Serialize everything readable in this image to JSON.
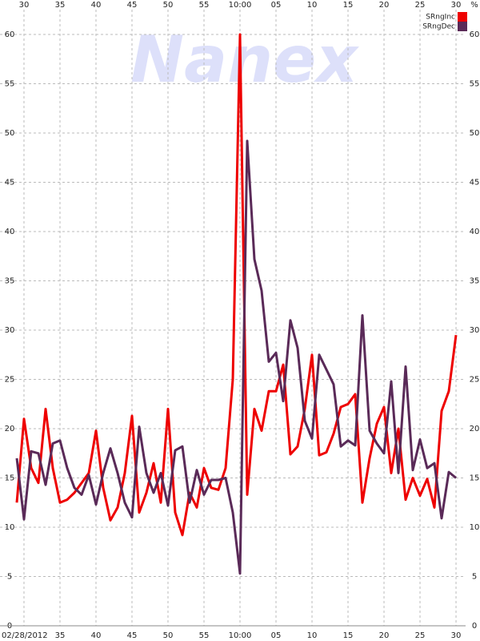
{
  "chart_data": {
    "type": "line",
    "watermark": "Nanex",
    "date": "02/28/2012",
    "y_unit": "%",
    "x": [
      29,
      30,
      31,
      32,
      33,
      34,
      35,
      36,
      37,
      38,
      39,
      40,
      41,
      42,
      43,
      44,
      45,
      46,
      47,
      48,
      49,
      50,
      51,
      52,
      53,
      54,
      55,
      56,
      57,
      58,
      59,
      60,
      61,
      62,
      63,
      64,
      65,
      66,
      67,
      68,
      69,
      70,
      71,
      72,
      73,
      74,
      75,
      76,
      77,
      78,
      79,
      80,
      81,
      82,
      83,
      84,
      85,
      86,
      87,
      88,
      89,
      90
    ],
    "series": [
      {
        "name": "SRngInc",
        "color": "#ee0000",
        "values": [
          12.5,
          21,
          16,
          14.5,
          22,
          16,
          12.5,
          12.8,
          13.5,
          14.5,
          15.5,
          19.8,
          14,
          10.7,
          12,
          15.5,
          21.3,
          11.5,
          13.5,
          16.5,
          12.5,
          22,
          11.5,
          9.2,
          13.5,
          12,
          16,
          14,
          13.8,
          16,
          25,
          60,
          13.3,
          22,
          19.8,
          23.8,
          23.8,
          26.5,
          17.4,
          18.2,
          22,
          27.5,
          17.3,
          17.6,
          19.5,
          22.2,
          22.5,
          23.5,
          12.5,
          17,
          20.5,
          22.2,
          15.5,
          20,
          12.8,
          15,
          13.2,
          14.9,
          12,
          21.8,
          23.8,
          29.5
        ]
      },
      {
        "name": "SRngDec",
        "color": "#5a2a58",
        "values": [
          17,
          10.8,
          17.7,
          17.5,
          14.3,
          18.5,
          18.8,
          16,
          14,
          13.3,
          15.3,
          12.3,
          15.5,
          18,
          15.5,
          12.5,
          11,
          20.2,
          15.5,
          13.5,
          15.5,
          12.2,
          17.8,
          18.2,
          12.5,
          15.8,
          13.3,
          14.8,
          14.8,
          15,
          11.5,
          5.3,
          49.2,
          37.2,
          34,
          26.8,
          27.7,
          22.8,
          31,
          28.2,
          20.8,
          19,
          27.5,
          26,
          24.5,
          18.2,
          18.8,
          18.3,
          31.5,
          19.8,
          18.5,
          17.5,
          24.8,
          15.5,
          26.3,
          15.8,
          18.9,
          16,
          16.5,
          10.9,
          15.6,
          15
        ]
      }
    ],
    "xlim": [
      26.67,
      91.33
    ],
    "xticks": [
      30,
      35,
      40,
      45,
      50,
      55,
      {
        "value": 60,
        "label": "10:00"
      },
      {
        "value": 65,
        "label": "05"
      },
      {
        "value": 70,
        "label": "10"
      },
      {
        "value": 75,
        "label": "15"
      },
      {
        "value": 80,
        "label": "20"
      },
      {
        "value": 85,
        "label": "25"
      },
      {
        "value": 90,
        "label": "30"
      }
    ],
    "ylim": [
      0,
      63.5
    ],
    "yticks": [
      0,
      5,
      10,
      15,
      20,
      25,
      30,
      35,
      40,
      45,
      50,
      55,
      60
    ],
    "grid": true
  }
}
